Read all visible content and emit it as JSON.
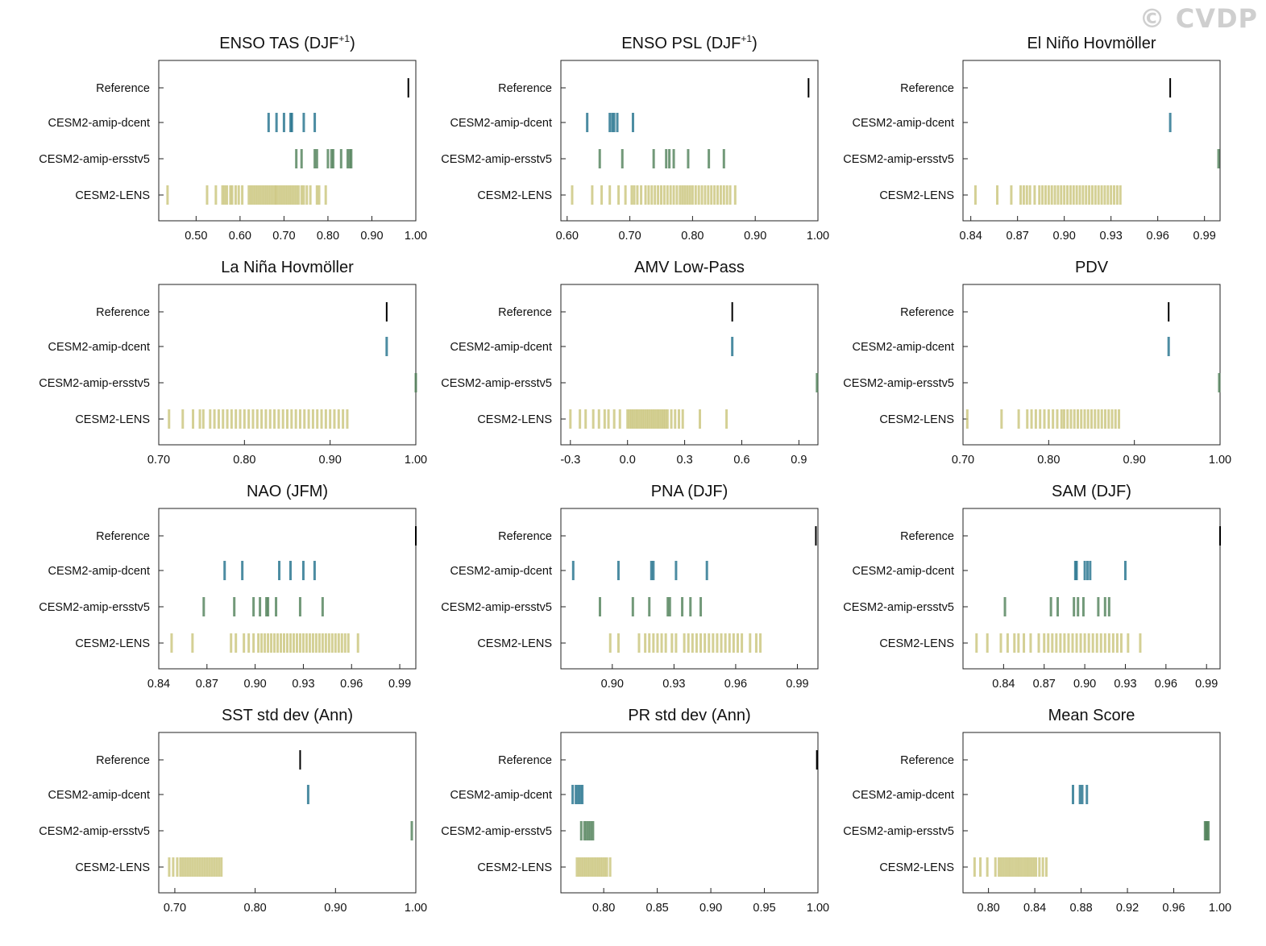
{
  "watermark": "© CVDP",
  "colors": {
    "Reference": "#000000",
    "CESM2-amip-dcent": "#1f6f8b",
    "CESM2-amip-ersstv5": "#4f7f58",
    "CESM2-LENS": "#c9c47a"
  },
  "chart_data": [
    {
      "type": "scatter",
      "title": "ENSO TAS (DJF",
      "title_sup": "+1",
      "title_end": ")",
      "rows": [
        "Reference",
        "CESM2-amip-dcent",
        "CESM2-amip-ersstv5",
        "CESM2-LENS"
      ],
      "xlim": [
        0.415,
        1.0
      ],
      "xticks": [
        0.5,
        0.6,
        0.7,
        0.8,
        0.9,
        1.0
      ],
      "xticklabels": [
        "0.50",
        "0.60",
        "0.70",
        "0.80",
        "0.90",
        "1.00"
      ],
      "values": {
        "Reference": [
          0.983
        ],
        "CESM2-amip-dcent": [
          0.665,
          0.683,
          0.7,
          0.715,
          0.718,
          0.745,
          0.77
        ],
        "CESM2-amip-ersstv5": [
          0.728,
          0.74,
          0.77,
          0.775,
          0.8,
          0.808,
          0.812,
          0.83,
          0.845,
          0.85,
          0.853
        ],
        "CESM2-LENS": [
          0.435,
          0.525,
          0.545,
          0.56,
          0.565,
          0.57,
          0.578,
          0.582,
          0.59,
          0.597,
          0.605,
          0.62,
          0.625,
          0.63,
          0.635,
          0.64,
          0.645,
          0.65,
          0.655,
          0.66,
          0.665,
          0.67,
          0.675,
          0.68,
          0.683,
          0.688,
          0.693,
          0.698,
          0.703,
          0.708,
          0.713,
          0.718,
          0.723,
          0.728,
          0.733,
          0.74,
          0.745,
          0.752,
          0.76,
          0.775,
          0.78,
          0.795
        ]
      }
    },
    {
      "type": "scatter",
      "title": "ENSO PSL (DJF",
      "title_sup": "+1",
      "title_end": ")",
      "rows": [
        "Reference",
        "CESM2-amip-dcent",
        "CESM2-amip-ersstv5",
        "CESM2-LENS"
      ],
      "xlim": [
        0.59,
        1.0
      ],
      "xticks": [
        0.6,
        0.7,
        0.8,
        0.9,
        1.0
      ],
      "xticklabels": [
        "0.60",
        "0.70",
        "0.80",
        "0.90",
        "1.00"
      ],
      "values": {
        "Reference": [
          0.985
        ],
        "CESM2-amip-dcent": [
          0.632,
          0.668,
          0.672,
          0.675,
          0.68,
          0.705
        ],
        "CESM2-amip-ersstv5": [
          0.652,
          0.688,
          0.738,
          0.758,
          0.763,
          0.77,
          0.793,
          0.826,
          0.85
        ],
        "CESM2-LENS": [
          0.608,
          0.64,
          0.655,
          0.668,
          0.682,
          0.693,
          0.703,
          0.707,
          0.712,
          0.718,
          0.725,
          0.73,
          0.735,
          0.74,
          0.745,
          0.75,
          0.755,
          0.76,
          0.765,
          0.77,
          0.775,
          0.78,
          0.784,
          0.788,
          0.792,
          0.796,
          0.8,
          0.805,
          0.81,
          0.815,
          0.82,
          0.825,
          0.83,
          0.835,
          0.84,
          0.845,
          0.85,
          0.855,
          0.86,
          0.868
        ]
      }
    },
    {
      "type": "scatter",
      "title": "El Niño Hovmöller",
      "title_sup": "",
      "title_end": "",
      "rows": [
        "Reference",
        "CESM2-amip-dcent",
        "CESM2-amip-ersstv5",
        "CESM2-LENS"
      ],
      "xlim": [
        0.835,
        1.0
      ],
      "xticks": [
        0.84,
        0.87,
        0.9,
        0.93,
        0.96,
        0.99
      ],
      "xticklabels": [
        "0.84",
        "0.87",
        "0.90",
        "0.93",
        "0.96",
        "0.99"
      ],
      "values": {
        "Reference": [
          0.968
        ],
        "CESM2-amip-dcent": [
          0.968
        ],
        "CESM2-amip-ersstv5": [
          0.999
        ],
        "CESM2-LENS": [
          0.843,
          0.857,
          0.866,
          0.872,
          0.874,
          0.876,
          0.878,
          0.881,
          0.884,
          0.886,
          0.888,
          0.89,
          0.892,
          0.894,
          0.896,
          0.898,
          0.9,
          0.902,
          0.904,
          0.906,
          0.908,
          0.91,
          0.912,
          0.914,
          0.916,
          0.918,
          0.92,
          0.922,
          0.924,
          0.926,
          0.928,
          0.93,
          0.932,
          0.934,
          0.936
        ]
      }
    },
    {
      "type": "scatter",
      "title": "La Niña Hovmöller",
      "title_sup": "",
      "title_end": "",
      "rows": [
        "Reference",
        "CESM2-amip-dcent",
        "CESM2-amip-ersstv5",
        "CESM2-LENS"
      ],
      "xlim": [
        0.7,
        1.0
      ],
      "xticks": [
        0.7,
        0.8,
        0.9,
        1.0
      ],
      "xticklabels": [
        "0.70",
        "0.80",
        "0.90",
        "1.00"
      ],
      "values": {
        "Reference": [
          0.966
        ],
        "CESM2-amip-dcent": [
          0.966
        ],
        "CESM2-amip-ersstv5": [
          1.0
        ],
        "CESM2-LENS": [
          0.712,
          0.728,
          0.74,
          0.748,
          0.752,
          0.76,
          0.765,
          0.77,
          0.775,
          0.78,
          0.785,
          0.79,
          0.795,
          0.8,
          0.805,
          0.81,
          0.815,
          0.82,
          0.825,
          0.83,
          0.835,
          0.84,
          0.845,
          0.85,
          0.855,
          0.86,
          0.865,
          0.87,
          0.875,
          0.88,
          0.885,
          0.89,
          0.895,
          0.9,
          0.905,
          0.91,
          0.915,
          0.92
        ]
      }
    },
    {
      "type": "scatter",
      "title": "AMV Low-Pass",
      "title_sup": "",
      "title_end": "",
      "rows": [
        "Reference",
        "CESM2-amip-dcent",
        "CESM2-amip-ersstv5",
        "CESM2-LENS"
      ],
      "xlim": [
        -0.35,
        1.0
      ],
      "xticks": [
        -0.3,
        0.0,
        0.3,
        0.6,
        0.9
      ],
      "xticklabels": [
        "-0.3",
        "0.0",
        "0.3",
        "0.6",
        "0.9"
      ],
      "values": {
        "Reference": [
          0.55
        ],
        "CESM2-amip-dcent": [
          0.55
        ],
        "CESM2-amip-ersstv5": [
          0.995
        ],
        "CESM2-LENS": [
          -0.3,
          -0.25,
          -0.22,
          -0.18,
          -0.15,
          -0.12,
          -0.1,
          -0.07,
          -0.04,
          0.0,
          0.01,
          0.02,
          0.03,
          0.04,
          0.05,
          0.06,
          0.07,
          0.08,
          0.09,
          0.1,
          0.11,
          0.12,
          0.13,
          0.14,
          0.15,
          0.16,
          0.17,
          0.18,
          0.19,
          0.2,
          0.21,
          0.23,
          0.25,
          0.27,
          0.29,
          0.38,
          0.52
        ]
      }
    },
    {
      "type": "scatter",
      "title": "PDV",
      "title_sup": "",
      "title_end": "",
      "rows": [
        "Reference",
        "CESM2-amip-dcent",
        "CESM2-amip-ersstv5",
        "CESM2-LENS"
      ],
      "xlim": [
        0.7,
        1.0
      ],
      "xticks": [
        0.7,
        0.8,
        0.9,
        1.0
      ],
      "xticklabels": [
        "0.70",
        "0.80",
        "0.90",
        "1.00"
      ],
      "values": {
        "Reference": [
          0.94
        ],
        "CESM2-amip-dcent": [
          0.94
        ],
        "CESM2-amip-ersstv5": [
          0.999
        ],
        "CESM2-LENS": [
          0.705,
          0.745,
          0.765,
          0.775,
          0.78,
          0.785,
          0.79,
          0.795,
          0.8,
          0.805,
          0.81,
          0.815,
          0.818,
          0.822,
          0.826,
          0.83,
          0.834,
          0.838,
          0.842,
          0.846,
          0.85,
          0.854,
          0.858,
          0.862,
          0.866,
          0.87,
          0.874,
          0.878,
          0.882
        ]
      }
    },
    {
      "type": "scatter",
      "title": "NAO (JFM)",
      "title_sup": "",
      "title_end": "",
      "rows": [
        "Reference",
        "CESM2-amip-dcent",
        "CESM2-amip-ersstv5",
        "CESM2-LENS"
      ],
      "xlim": [
        0.84,
        1.0
      ],
      "xticks": [
        0.84,
        0.87,
        0.9,
        0.93,
        0.96,
        0.99
      ],
      "xticklabels": [
        "0.84",
        "0.87",
        "0.90",
        "0.93",
        "0.96",
        "0.99"
      ],
      "values": {
        "Reference": [
          1.0
        ],
        "CESM2-amip-dcent": [
          0.881,
          0.892,
          0.915,
          0.922,
          0.93,
          0.937
        ],
        "CESM2-amip-ersstv5": [
          0.868,
          0.887,
          0.899,
          0.903,
          0.907,
          0.908,
          0.913,
          0.928,
          0.942
        ],
        "CESM2-LENS": [
          0.848,
          0.861,
          0.885,
          0.888,
          0.893,
          0.896,
          0.899,
          0.902,
          0.904,
          0.906,
          0.908,
          0.91,
          0.912,
          0.914,
          0.916,
          0.918,
          0.92,
          0.922,
          0.924,
          0.926,
          0.928,
          0.93,
          0.932,
          0.934,
          0.936,
          0.938,
          0.94,
          0.942,
          0.944,
          0.946,
          0.948,
          0.95,
          0.952,
          0.954,
          0.956,
          0.958,
          0.964
        ]
      }
    },
    {
      "type": "scatter",
      "title": "PNA (DJF)",
      "title_sup": "",
      "title_end": "",
      "rows": [
        "Reference",
        "CESM2-amip-dcent",
        "CESM2-amip-ersstv5",
        "CESM2-LENS"
      ],
      "xlim": [
        0.875,
        1.0
      ],
      "xticks": [
        0.9,
        0.93,
        0.96,
        0.99
      ],
      "xticklabels": [
        "0.90",
        "0.93",
        "0.96",
        "0.99"
      ],
      "values": {
        "Reference": [
          0.999
        ],
        "CESM2-amip-dcent": [
          0.881,
          0.903,
          0.919,
          0.92,
          0.931,
          0.946
        ],
        "CESM2-amip-ersstv5": [
          0.894,
          0.91,
          0.918,
          0.927,
          0.928,
          0.934,
          0.938,
          0.943
        ],
        "CESM2-LENS": [
          0.899,
          0.903,
          0.913,
          0.916,
          0.918,
          0.92,
          0.922,
          0.924,
          0.926,
          0.929,
          0.931,
          0.935,
          0.937,
          0.939,
          0.941,
          0.943,
          0.945,
          0.947,
          0.949,
          0.951,
          0.953,
          0.955,
          0.957,
          0.959,
          0.961,
          0.963,
          0.967,
          0.97,
          0.972
        ]
      }
    },
    {
      "type": "scatter",
      "title": "SAM (DJF)",
      "title_sup": "",
      "title_end": "",
      "rows": [
        "Reference",
        "CESM2-amip-dcent",
        "CESM2-amip-ersstv5",
        "CESM2-LENS"
      ],
      "xlim": [
        0.81,
        1.0
      ],
      "xticks": [
        0.84,
        0.87,
        0.9,
        0.93,
        0.96,
        0.99
      ],
      "xticklabels": [
        "0.84",
        "0.87",
        "0.90",
        "0.93",
        "0.96",
        "0.99"
      ],
      "values": {
        "Reference": [
          1.0
        ],
        "CESM2-amip-dcent": [
          0.893,
          0.894,
          0.9,
          0.902,
          0.904,
          0.93
        ],
        "CESM2-amip-ersstv5": [
          0.841,
          0.875,
          0.88,
          0.892,
          0.895,
          0.899,
          0.91,
          0.915,
          0.918
        ],
        "CESM2-LENS": [
          0.82,
          0.828,
          0.838,
          0.843,
          0.848,
          0.851,
          0.855,
          0.86,
          0.866,
          0.87,
          0.873,
          0.876,
          0.879,
          0.882,
          0.885,
          0.888,
          0.891,
          0.894,
          0.897,
          0.9,
          0.903,
          0.906,
          0.909,
          0.912,
          0.915,
          0.918,
          0.921,
          0.924,
          0.927,
          0.932,
          0.941
        ]
      }
    },
    {
      "type": "scatter",
      "title": "SST std dev (Ann)",
      "title_sup": "",
      "title_end": "",
      "rows": [
        "Reference",
        "CESM2-amip-dcent",
        "CESM2-amip-ersstv5",
        "CESM2-LENS"
      ],
      "xlim": [
        0.68,
        1.0
      ],
      "xticks": [
        0.7,
        0.8,
        0.9,
        1.0
      ],
      "xticklabels": [
        "0.70",
        "0.80",
        "0.90",
        "1.00"
      ],
      "values": {
        "Reference": [
          0.856
        ],
        "CESM2-amip-dcent": [
          0.866
        ],
        "CESM2-amip-ersstv5": [
          0.995
        ],
        "CESM2-LENS": [
          0.693,
          0.698,
          0.703,
          0.707,
          0.71,
          0.713,
          0.716,
          0.719,
          0.722,
          0.725,
          0.728,
          0.731,
          0.734,
          0.737,
          0.74,
          0.743,
          0.746,
          0.749,
          0.752,
          0.755,
          0.758
        ]
      }
    },
    {
      "type": "scatter",
      "title": "PR std dev (Ann)",
      "title_sup": "",
      "title_end": "",
      "rows": [
        "Reference",
        "CESM2-amip-dcent",
        "CESM2-amip-ersstv5",
        "CESM2-LENS"
      ],
      "xlim": [
        0.76,
        1.0
      ],
      "xticks": [
        0.8,
        0.85,
        0.9,
        0.95,
        1.0
      ],
      "xticklabels": [
        "0.80",
        "0.85",
        "0.90",
        "0.95",
        "1.00"
      ],
      "values": {
        "Reference": [
          0.999
        ],
        "CESM2-amip-dcent": [
          0.771,
          0.774,
          0.776,
          0.778,
          0.78
        ],
        "CESM2-amip-ersstv5": [
          0.779,
          0.782,
          0.784,
          0.786,
          0.788,
          0.79
        ],
        "CESM2-LENS": [
          0.775,
          0.777,
          0.779,
          0.781,
          0.783,
          0.785,
          0.787,
          0.789,
          0.791,
          0.793,
          0.795,
          0.797,
          0.799,
          0.801,
          0.803,
          0.806
        ]
      }
    },
    {
      "type": "scatter",
      "title": "Mean Score",
      "title_sup": "",
      "title_end": "",
      "rows": [
        "Reference",
        "CESM2-amip-dcent",
        "CESM2-amip-ersstv5",
        "CESM2-LENS"
      ],
      "xlim": [
        0.778,
        1.0
      ],
      "xticks": [
        0.8,
        0.84,
        0.88,
        0.92,
        0.96,
        1.0
      ],
      "xticklabels": [
        "0.80",
        "0.84",
        "0.88",
        "0.92",
        "0.96",
        "1.00"
      ],
      "values": {
        "Reference": [],
        "CESM2-amip-dcent": [
          0.873,
          0.879,
          0.881,
          0.885
        ],
        "CESM2-amip-ersstv5": [
          0.987,
          0.988,
          0.989,
          0.99
        ],
        "CESM2-LENS": [
          0.788,
          0.793,
          0.799,
          0.806,
          0.809,
          0.811,
          0.813,
          0.815,
          0.817,
          0.819,
          0.821,
          0.823,
          0.825,
          0.827,
          0.829,
          0.831,
          0.833,
          0.835,
          0.837,
          0.839,
          0.841,
          0.844,
          0.847,
          0.85
        ]
      }
    }
  ]
}
